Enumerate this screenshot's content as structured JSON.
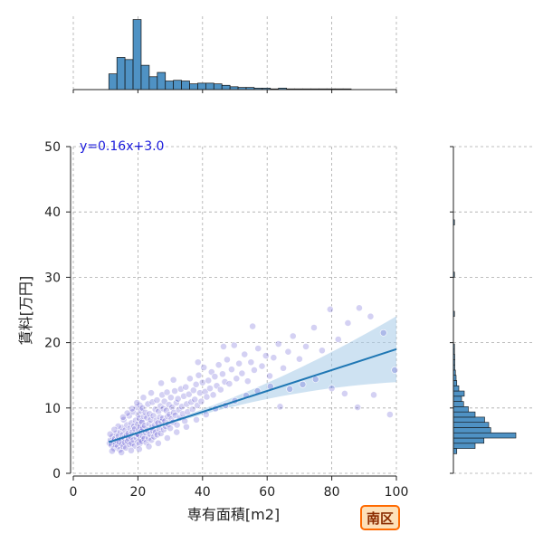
{
  "chart_data": {
    "type": "scatter",
    "xlabel": "専有面積[m2]",
    "ylabel": "賃料[万円]",
    "xlim": [
      0,
      100
    ],
    "ylim": [
      0,
      50
    ],
    "xticks": [
      0,
      20,
      40,
      60,
      80,
      100
    ],
    "yticks": [
      0,
      10,
      20,
      30,
      40,
      50
    ],
    "grid": true,
    "regression": {
      "equation": "y=0.16x+3.0",
      "slope": 0.16,
      "intercept": 3.0,
      "x_range": [
        11,
        100
      ]
    },
    "badge": "南区",
    "colors": {
      "points": "#3b2fc9",
      "regression_line": "#1f77b4",
      "confidence_band": "#a6cbe8",
      "histogram_fill": "#4f92c4",
      "histogram_edge": "#111111",
      "badge_fill": "#fde0b8",
      "badge_edge": "#ff6a00",
      "equation_text": "#1a1adc"
    },
    "x_histogram": {
      "bin_width": 2.5,
      "start": 11,
      "heights": [
        0.22,
        0.45,
        0.42,
        0.98,
        0.34,
        0.18,
        0.24,
        0.12,
        0.13,
        0.12,
        0.08,
        0.09,
        0.09,
        0.08,
        0.06,
        0.04,
        0.03,
        0.03,
        0.02,
        0.02,
        0.01,
        0.02,
        0.01,
        0.01,
        0.01,
        0.01,
        0.01,
        0.01,
        0.01,
        0.01
      ]
    },
    "y_histogram": {
      "bin_width": 0.8,
      "bins": [
        [
          3.0,
          0.05
        ],
        [
          3.8,
          0.32
        ],
        [
          4.6,
          0.45
        ],
        [
          5.4,
          0.92
        ],
        [
          6.2,
          0.55
        ],
        [
          7.0,
          0.52
        ],
        [
          7.8,
          0.46
        ],
        [
          8.6,
          0.32
        ],
        [
          9.4,
          0.22
        ],
        [
          10.2,
          0.15
        ],
        [
          11.0,
          0.12
        ],
        [
          11.8,
          0.16
        ],
        [
          12.6,
          0.08
        ],
        [
          13.4,
          0.05
        ],
        [
          14.2,
          0.04
        ],
        [
          15.0,
          0.03
        ],
        [
          15.8,
          0.02
        ],
        [
          16.6,
          0.02
        ],
        [
          17.4,
          0.02
        ],
        [
          18.2,
          0.01
        ],
        [
          19.0,
          0.01
        ],
        [
          24.0,
          0.01
        ],
        [
          30.0,
          0.01
        ],
        [
          38.0,
          0.01
        ]
      ]
    },
    "points": [
      [
        11.2,
        4.6
      ],
      [
        11.5,
        5.1
      ],
      [
        11.8,
        4.3
      ],
      [
        12.1,
        5.6
      ],
      [
        12.4,
        4.9
      ],
      [
        12.6,
        3.8
      ],
      [
        12.9,
        5.3
      ],
      [
        13.1,
        4.4
      ],
      [
        13.3,
        6.1
      ],
      [
        13.5,
        5.0
      ],
      [
        13.8,
        4.2
      ],
      [
        14.0,
        5.7
      ],
      [
        14.2,
        4.8
      ],
      [
        14.4,
        3.6
      ],
      [
        14.6,
        6.4
      ],
      [
        14.8,
        5.2
      ],
      [
        15.0,
        4.5
      ],
      [
        15.1,
        7.0
      ],
      [
        15.3,
        5.9
      ],
      [
        15.5,
        4.1
      ],
      [
        15.6,
        8.2
      ],
      [
        15.8,
        5.4
      ],
      [
        16.0,
        4.7
      ],
      [
        16.1,
        6.6
      ],
      [
        16.3,
        3.9
      ],
      [
        16.5,
        5.8
      ],
      [
        16.6,
        7.4
      ],
      [
        16.8,
        4.9
      ],
      [
        17.0,
        6.1
      ],
      [
        17.1,
        5.3
      ],
      [
        17.3,
        8.8
      ],
      [
        17.5,
        4.4
      ],
      [
        17.6,
        6.9
      ],
      [
        17.8,
        5.6
      ],
      [
        18.0,
        7.7
      ],
      [
        18.1,
        4.6
      ],
      [
        18.3,
        6.3
      ],
      [
        18.5,
        9.4
      ],
      [
        18.6,
        5.1
      ],
      [
        18.8,
        7.2
      ],
      [
        19.0,
        4.2
      ],
      [
        19.1,
        6.8
      ],
      [
        19.3,
        8.1
      ],
      [
        19.5,
        5.5
      ],
      [
        19.6,
        10.1
      ],
      [
        19.8,
        6.0
      ],
      [
        20.0,
        4.8
      ],
      [
        20.0,
        7.5
      ],
      [
        20.1,
        9.0
      ],
      [
        20.2,
        5.9
      ],
      [
        20.3,
        6.7
      ],
      [
        20.4,
        8.4
      ],
      [
        20.5,
        4.5
      ],
      [
        20.6,
        10.4
      ],
      [
        20.7,
        7.1
      ],
      [
        20.8,
        5.2
      ],
      [
        20.9,
        9.6
      ],
      [
        21.0,
        6.4
      ],
      [
        21.1,
        8.0
      ],
      [
        21.2,
        4.9
      ],
      [
        21.3,
        7.8
      ],
      [
        21.4,
        10.0
      ],
      [
        21.5,
        5.7
      ],
      [
        21.6,
        6.9
      ],
      [
        21.8,
        8.7
      ],
      [
        22.0,
        5.3
      ],
      [
        22.1,
        7.3
      ],
      [
        22.3,
        9.3
      ],
      [
        22.5,
        6.2
      ],
      [
        22.6,
        4.7
      ],
      [
        22.8,
        8.5
      ],
      [
        23.0,
        6.6
      ],
      [
        23.1,
        10.6
      ],
      [
        23.3,
        5.4
      ],
      [
        23.5,
        7.6
      ],
      [
        23.6,
        9.1
      ],
      [
        23.8,
        6.0
      ],
      [
        24.0,
        8.2
      ],
      [
        24.2,
        5.1
      ],
      [
        24.3,
        7.0
      ],
      [
        24.5,
        10.9
      ],
      [
        24.7,
        6.5
      ],
      [
        24.8,
        8.8
      ],
      [
        25.0,
        5.6
      ],
      [
        25.2,
        7.4
      ],
      [
        25.4,
        9.8
      ],
      [
        25.5,
        6.3
      ],
      [
        25.7,
        8.1
      ],
      [
        25.9,
        11.2
      ],
      [
        26.0,
        5.9
      ],
      [
        26.2,
        7.7
      ],
      [
        26.4,
        9.5
      ],
      [
        26.6,
        6.8
      ],
      [
        26.8,
        8.6
      ],
      [
        27.0,
        10.3
      ],
      [
        27.1,
        6.1
      ],
      [
        27.3,
        7.9
      ],
      [
        27.5,
        12.0
      ],
      [
        27.7,
        8.4
      ],
      [
        27.9,
        9.9
      ],
      [
        28.0,
        6.7
      ],
      [
        28.2,
        11.0
      ],
      [
        28.4,
        8.0
      ],
      [
        28.6,
        7.2
      ],
      [
        28.8,
        9.6
      ],
      [
        29.0,
        12.4
      ],
      [
        29.2,
        8.7
      ],
      [
        29.4,
        7.5
      ],
      [
        29.6,
        10.5
      ],
      [
        29.8,
        9.0
      ],
      [
        30.0,
        6.9
      ],
      [
        30.2,
        11.6
      ],
      [
        30.4,
        8.3
      ],
      [
        30.6,
        10.1
      ],
      [
        30.9,
        7.8
      ],
      [
        31.1,
        9.3
      ],
      [
        31.4,
        12.6
      ],
      [
        31.6,
        8.9
      ],
      [
        31.9,
        10.8
      ],
      [
        32.1,
        7.4
      ],
      [
        32.4,
        11.4
      ],
      [
        32.7,
        9.7
      ],
      [
        33.0,
        8.5
      ],
      [
        33.3,
        12.9
      ],
      [
        33.6,
        10.2
      ],
      [
        33.9,
        9.1
      ],
      [
        34.2,
        11.8
      ],
      [
        34.5,
        8.0
      ],
      [
        34.8,
        13.2
      ],
      [
        35.1,
        10.6
      ],
      [
        35.4,
        9.4
      ],
      [
        35.8,
        12.1
      ],
      [
        36.1,
        14.5
      ],
      [
        36.5,
        10.9
      ],
      [
        36.9,
        9.8
      ],
      [
        37.2,
        12.7
      ],
      [
        37.6,
        11.3
      ],
      [
        38.0,
        13.6
      ],
      [
        38.4,
        10.4
      ],
      [
        38.8,
        15.0
      ],
      [
        39.2,
        12.3
      ],
      [
        39.6,
        11.0
      ],
      [
        40.0,
        13.9
      ],
      [
        40.4,
        16.2
      ],
      [
        40.8,
        12.5
      ],
      [
        41.3,
        11.7
      ],
      [
        41.8,
        14.2
      ],
      [
        42.3,
        13.0
      ],
      [
        42.8,
        15.5
      ],
      [
        43.3,
        12.0
      ],
      [
        43.8,
        14.8
      ],
      [
        44.4,
        13.4
      ],
      [
        45.0,
        16.6
      ],
      [
        45.6,
        12.8
      ],
      [
        46.2,
        15.2
      ],
      [
        46.9,
        14.0
      ],
      [
        47.6,
        17.4
      ],
      [
        48.3,
        13.7
      ],
      [
        49.0,
        15.9
      ],
      [
        49.8,
        19.6
      ],
      [
        50.5,
        14.5
      ],
      [
        51.3,
        16.8
      ],
      [
        52.2,
        15.3
      ],
      [
        53.0,
        18.2
      ],
      [
        54.0,
        14.1
      ],
      [
        55.0,
        17.0
      ],
      [
        56.0,
        15.8
      ],
      [
        57.2,
        19.1
      ],
      [
        58.4,
        16.4
      ],
      [
        59.6,
        18.0
      ],
      [
        60.8,
        14.9
      ],
      [
        62.0,
        17.7
      ],
      [
        63.5,
        19.8
      ],
      [
        65.0,
        16.1
      ],
      [
        66.5,
        18.6
      ],
      [
        68.0,
        21.0
      ],
      [
        70.0,
        17.5
      ],
      [
        72.0,
        19.4
      ],
      [
        74.5,
        22.3
      ],
      [
        77.0,
        18.8
      ],
      [
        79.5,
        25.1
      ],
      [
        82.0,
        20.5
      ],
      [
        85.0,
        23.0
      ],
      [
        88.5,
        25.3
      ],
      [
        92.0,
        24.0
      ],
      [
        96.0,
        21.5
      ],
      [
        99.5,
        15.8
      ],
      [
        12.0,
        3.4
      ],
      [
        14.9,
        3.2
      ],
      [
        17.9,
        3.5
      ],
      [
        20.4,
        3.7
      ],
      [
        23.4,
        4.1
      ],
      [
        26.3,
        4.6
      ],
      [
        29.1,
        5.4
      ],
      [
        32.0,
        6.3
      ],
      [
        35.0,
        7.1
      ],
      [
        38.1,
        8.2
      ],
      [
        41.1,
        9.0
      ],
      [
        44.0,
        9.9
      ],
      [
        47.1,
        10.4
      ],
      [
        50.0,
        11.1
      ],
      [
        53.5,
        11.9
      ],
      [
        57.0,
        12.6
      ],
      [
        61.0,
        13.3
      ],
      [
        64.0,
        10.2
      ],
      [
        67.0,
        12.9
      ],
      [
        71.0,
        13.6
      ],
      [
        75.0,
        14.4
      ],
      [
        80.0,
        13.0
      ],
      [
        84.0,
        12.2
      ],
      [
        88.0,
        10.1
      ],
      [
        93.0,
        12.0
      ],
      [
        98.0,
        9.0
      ],
      [
        55.5,
        22.5
      ],
      [
        46.5,
        19.4
      ],
      [
        38.6,
        17.0
      ],
      [
        31.0,
        14.3
      ],
      [
        27.2,
        13.8
      ],
      [
        24.1,
        12.3
      ],
      [
        21.7,
        11.6
      ],
      [
        19.7,
        10.8
      ],
      [
        18.2,
        9.9
      ],
      [
        16.7,
        9.2
      ],
      [
        15.4,
        8.6
      ],
      [
        13.9,
        7.2
      ],
      [
        12.7,
        6.7
      ],
      [
        11.4,
        6.0
      ]
    ]
  }
}
